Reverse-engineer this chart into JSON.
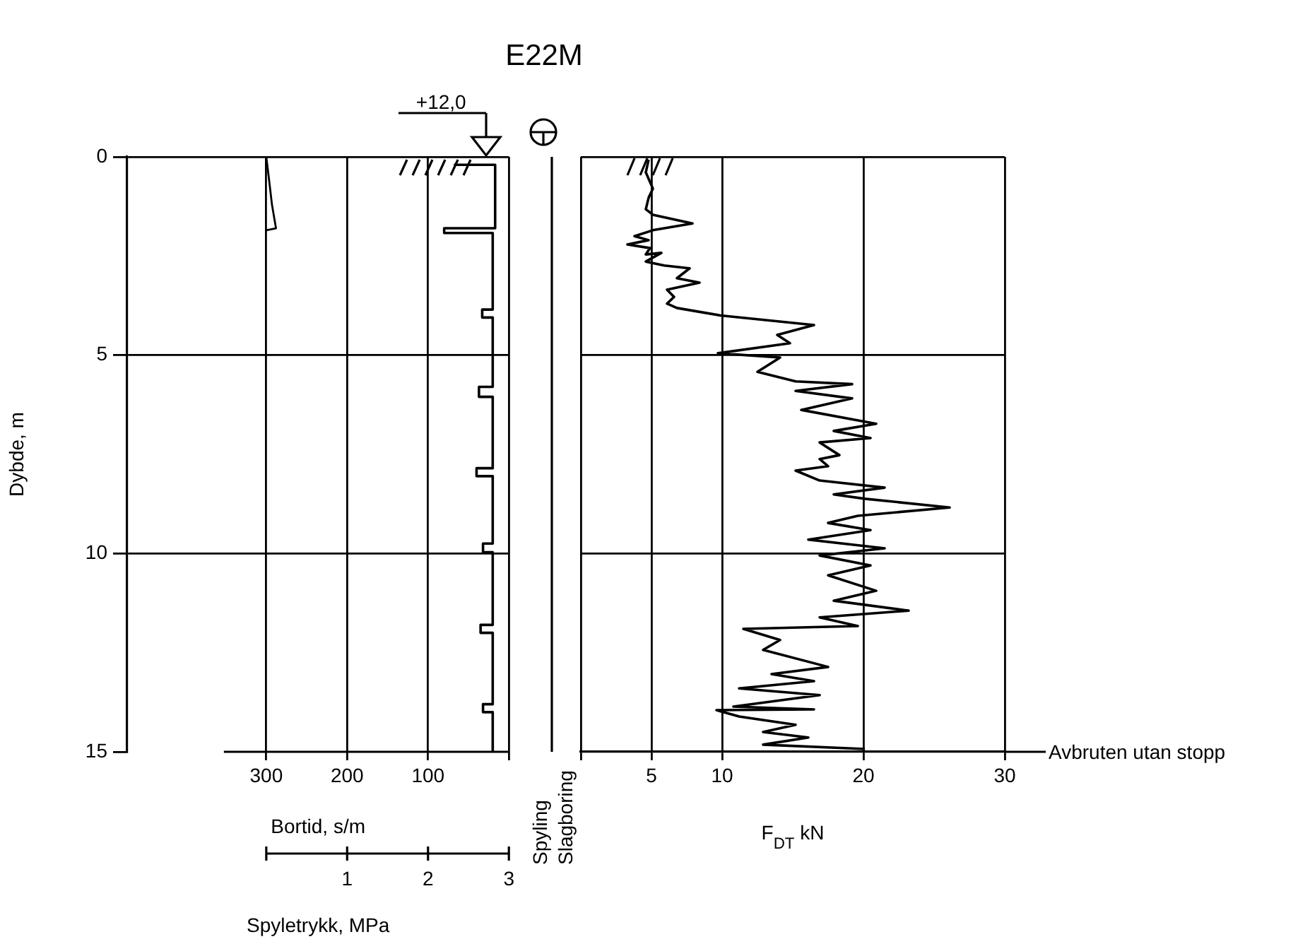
{
  "chart_data": [
    {
      "type": "line",
      "title": "E22M",
      "xlabel": "Bortid, s/m",
      "x2label": "Spyletrykk, MPa",
      "ylabel": "Dybde, m",
      "annotations": [
        "+12,0"
      ],
      "xlim": [
        472,
        0
      ],
      "xticks": [
        300,
        200,
        100,
        {
          "value": 0,
          "label": null
        }
      ],
      "x2lim": [
        -1.72,
        3
      ],
      "x2ticks": [
        {
          "value": 0,
          "label": null
        },
        1,
        2,
        3
      ],
      "ylim": [
        15,
        0
      ],
      "yticks": [
        0,
        5,
        10,
        15
      ],
      "grid": true,
      "series": [
        {
          "color": "#000000",
          "x": [
            68,
            17,
            17,
            80,
            80,
            20,
            20,
            33,
            33,
            20,
            20,
            37,
            37,
            20,
            20,
            40,
            40,
            20,
            20,
            32,
            32,
            20,
            20,
            35,
            35,
            20,
            20,
            32,
            32,
            20,
            20
          ],
          "values": [
            0.2,
            0.2,
            1.8,
            1.8,
            1.92,
            1.92,
            3.85,
            3.85,
            4.05,
            4.05,
            5.8,
            5.8,
            6.05,
            6.05,
            7.85,
            7.85,
            8.05,
            8.05,
            9.75,
            9.75,
            9.97,
            9.97,
            11.8,
            11.8,
            12.0,
            12.0,
            13.8,
            13.8,
            14.0,
            14.0,
            15
          ]
        },
        {
          "color": "#000000",
          "axis": "x2",
          "x": [
            0,
            0.03,
            0.07,
            0.12,
            0
          ],
          "values": [
            0,
            0.5,
            1.2,
            1.8,
            1.85
          ]
        }
      ]
    },
    {
      "type": "line",
      "xlabel": "F$_{DT}$ kN",
      "annotations": [
        "Spyling",
        "Slagboring",
        "Avbruten utan stopp"
      ],
      "xlim": [
        0,
        30
      ],
      "xticks": [
        {
          "value": 0,
          "label": null
        },
        5,
        10,
        20,
        30
      ],
      "ylim": [
        15,
        0
      ],
      "yticks": [
        0,
        5,
        10,
        15
      ],
      "tick_labels": "x",
      "grid": true,
      "series": [
        {
          "color": "#000000",
          "x": [
            4.8,
            4.6,
            5.1,
            4.8,
            4.6,
            5.1,
            7.9,
            5.1,
            3.8,
            4.8,
            3.3,
            4.9,
            4.6,
            5.7,
            4.6,
            5.9,
            7.7,
            6.8,
            8.4,
            6.1,
            6.6,
            6.1,
            6.8,
            9.9,
            16.5,
            13.9,
            14.8,
            9.7,
            14.1,
            12.5,
            15.2,
            19.2,
            15.2,
            19.2,
            15.6,
            20.9,
            17.9,
            20.5,
            16.9,
            18.3,
            16.9,
            17.5,
            15.2,
            16.9,
            21.5,
            17.9,
            20.1,
            26.1,
            19.6,
            17.5,
            20.5,
            16.1,
            21.5,
            16.9,
            20.5,
            17.5,
            20.9,
            17.9,
            23.2,
            16.9,
            19.6,
            11.5,
            14.1,
            12.9,
            17.5,
            13.5,
            16.5,
            11.2,
            16.9,
            10.8,
            16.5,
            9.6,
            11.2,
            15.2,
            12.9,
            16.1,
            12.9,
            20.1
          ],
          "values": [
            0.07,
            0.39,
            0.8,
            1.03,
            1.32,
            1.46,
            1.68,
            1.85,
            2.0,
            2.1,
            2.21,
            2.3,
            2.46,
            2.42,
            2.64,
            2.74,
            2.81,
            3.06,
            3.17,
            3.35,
            3.53,
            3.7,
            3.81,
            4.0,
            4.24,
            4.49,
            4.7,
            4.95,
            5.06,
            5.42,
            5.66,
            5.73,
            5.9,
            6.09,
            6.38,
            6.73,
            6.91,
            7.09,
            7.2,
            7.52,
            7.62,
            7.8,
            7.91,
            8.16,
            8.34,
            8.51,
            8.62,
            8.84,
            9.05,
            9.23,
            9.41,
            9.65,
            9.87,
            10.05,
            10.3,
            10.55,
            10.94,
            11.19,
            11.44,
            11.61,
            11.83,
            11.9,
            12.18,
            12.43,
            12.86,
            13.04,
            13.22,
            13.4,
            13.57,
            13.86,
            13.93,
            13.95,
            14.11,
            14.32,
            14.5,
            14.64,
            14.82,
            14.93
          ]
        }
      ]
    }
  ]
}
